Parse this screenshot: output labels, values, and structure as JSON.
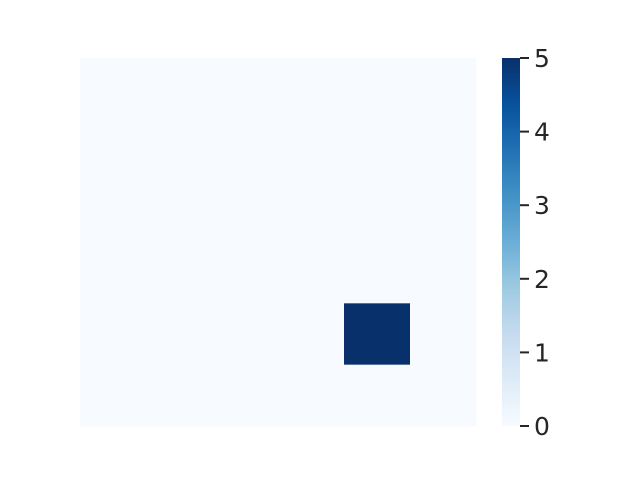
{
  "chart_data": {
    "type": "heatmap",
    "rows": 6,
    "cols": 6,
    "values": [
      [
        0,
        0,
        0,
        0,
        0,
        0
      ],
      [
        0,
        0,
        0,
        0,
        0,
        0
      ],
      [
        0,
        0,
        0,
        0,
        0,
        0
      ],
      [
        0,
        0,
        0,
        0,
        0,
        0
      ],
      [
        0,
        0,
        0,
        0,
        5,
        0
      ],
      [
        0,
        0,
        0,
        0,
        0,
        0
      ]
    ],
    "vmin": 0,
    "vmax": 5,
    "colormap": "Blues",
    "colorbar_ticks": [
      "0",
      "1",
      "2",
      "3",
      "4",
      "5"
    ],
    "colorbar_tick_values": [
      0,
      1,
      2,
      3,
      4,
      5
    ],
    "x_tick_labels": [],
    "y_tick_labels": [],
    "title": "",
    "xlabel": "",
    "ylabel": "",
    "grid": false,
    "colors": {
      "low": "#f7fbff",
      "high": "#08306b",
      "tick_text": "#262626"
    }
  }
}
